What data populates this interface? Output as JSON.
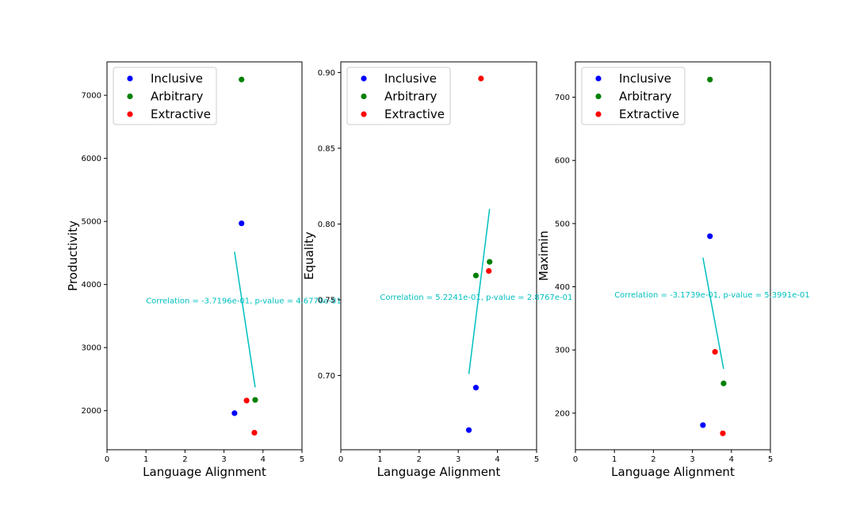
{
  "chart_data": [
    {
      "type": "scatter",
      "xlabel": "Language Alignment",
      "ylabel": "Productivity",
      "xlim": [
        0,
        5
      ],
      "ylim": [
        1380,
        7530
      ],
      "xticks": [
        0,
        1,
        2,
        3,
        4,
        5
      ],
      "yticks": [
        2000,
        3000,
        4000,
        5000,
        6000,
        7000
      ],
      "ytick_labels": [
        "2000",
        "3000",
        "4000",
        "5000",
        "6000",
        "7000"
      ],
      "legend_position": "upper-left",
      "series": [
        {
          "name": "Inclusive",
          "color": "#0000ff",
          "points": [
            [
              3.27,
              1960
            ],
            [
              3.45,
              4970
            ]
          ]
        },
        {
          "name": "Arbitrary",
          "color": "#008000",
          "points": [
            [
              3.45,
              7250
            ],
            [
              3.8,
              2170
            ]
          ]
        },
        {
          "name": "Extractive",
          "color": "#ff0000",
          "points": [
            [
              3.58,
              2160
            ],
            [
              3.78,
              1650
            ]
          ]
        }
      ],
      "fit_line": {
        "color": "#00bfbf",
        "x": [
          3.27,
          3.8
        ],
        "y": [
          4520,
          2370
        ]
      },
      "annotation": {
        "text": "Correlation = -3.7196e-01, p-value = 4.6770e-01",
        "x": 1.0,
        "y": 3750
      }
    },
    {
      "type": "scatter",
      "xlabel": "Language Alignment",
      "ylabel": "Equality",
      "xlim": [
        0,
        5
      ],
      "ylim": [
        0.651,
        0.907
      ],
      "xticks": [
        0,
        1,
        2,
        3,
        4,
        5
      ],
      "yticks": [
        0.7,
        0.75,
        0.8,
        0.85,
        0.9
      ],
      "ytick_labels": [
        "0.70",
        "0.75",
        "0.80",
        "0.85",
        "0.90"
      ],
      "legend_position": "upper-left",
      "series": [
        {
          "name": "Inclusive",
          "color": "#0000ff",
          "points": [
            [
              3.27,
              0.664
            ],
            [
              3.45,
              0.692
            ]
          ]
        },
        {
          "name": "Arbitrary",
          "color": "#008000",
          "points": [
            [
              3.45,
              0.766
            ],
            [
              3.8,
              0.775
            ]
          ]
        },
        {
          "name": "Extractive",
          "color": "#ff0000",
          "points": [
            [
              3.58,
              0.896
            ],
            [
              3.78,
              0.769
            ]
          ]
        }
      ],
      "fit_line": {
        "color": "#00bfbf",
        "x": [
          3.27,
          3.8
        ],
        "y": [
          0.701,
          0.81
        ]
      },
      "annotation": {
        "text": "Correlation = 5.2241e-01, p-value = 2.8767e-01",
        "x": 1.0,
        "y": 0.752
      }
    },
    {
      "type": "scatter",
      "xlabel": "Language Alignment",
      "ylabel": "Maximin",
      "xlim": [
        0,
        5
      ],
      "ylim": [
        142,
        756
      ],
      "xticks": [
        0,
        1,
        2,
        3,
        4,
        5
      ],
      "yticks": [
        200,
        300,
        400,
        500,
        600,
        700
      ],
      "ytick_labels": [
        "200",
        "300",
        "400",
        "500",
        "600",
        "700"
      ],
      "legend_position": "upper-left",
      "series": [
        {
          "name": "Inclusive",
          "color": "#0000ff",
          "points": [
            [
              3.27,
              181
            ],
            [
              3.45,
              480
            ]
          ]
        },
        {
          "name": "Arbitrary",
          "color": "#008000",
          "points": [
            [
              3.45,
              728
            ],
            [
              3.8,
              247
            ]
          ]
        },
        {
          "name": "Extractive",
          "color": "#ff0000",
          "points": [
            [
              3.58,
              297
            ],
            [
              3.78,
              168
            ]
          ]
        }
      ],
      "fit_line": {
        "color": "#00bfbf",
        "x": [
          3.27,
          3.8
        ],
        "y": [
          446,
          270
        ]
      },
      "annotation": {
        "text": "Correlation = -3.1739e-01, p-value = 5.3991e-01",
        "x": 1.0,
        "y": 388
      }
    }
  ]
}
